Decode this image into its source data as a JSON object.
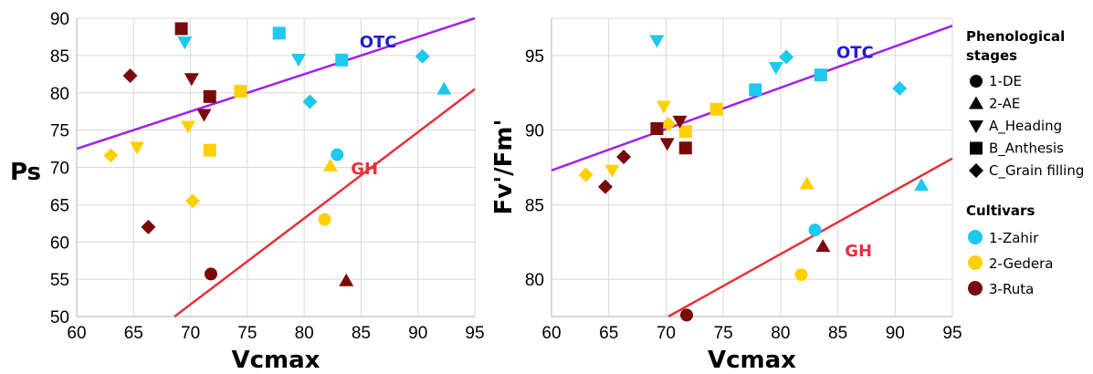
{
  "colors": {
    "zahir": "#1EC8EE",
    "gedera": "#FFD000",
    "ruta": "#7A0A0A",
    "otc": "#A020F0",
    "gh": "#E8303A",
    "otc_label": "#1E1ECC",
    "gh_label": "#E8303A"
  },
  "legend": {
    "stages_title_1": "Phenological",
    "stages_title_2": "stages",
    "stages": [
      {
        "label": "1-DE",
        "marker": "circle"
      },
      {
        "label": "2-AE",
        "marker": "triangle-up"
      },
      {
        "label": "A_Heading",
        "marker": "triangle-down"
      },
      {
        "label": "B_Anthesis",
        "marker": "square"
      },
      {
        "label": "C_Grain filling",
        "marker": "diamond"
      }
    ],
    "cultivars_title": "Cultivars",
    "cultivars": [
      {
        "label": "1-Zahir",
        "key": "zahir"
      },
      {
        "label": "2-Gedera",
        "key": "gedera"
      },
      {
        "label": "3-Ruta",
        "key": "ruta"
      }
    ]
  },
  "chart_data": [
    {
      "type": "scatter",
      "xlabel": "Vcmax",
      "ylabel": "Ps",
      "xlim": [
        60,
        95
      ],
      "ylim": [
        50,
        90
      ],
      "xticks": [
        "60",
        "65",
        "70",
        "75",
        "80",
        "85",
        "90",
        "95"
      ],
      "yticks": [
        "50",
        "55",
        "60",
        "65",
        "70",
        "75",
        "80",
        "85",
        "90"
      ],
      "grid": true,
      "fits": [
        {
          "label": "OTC",
          "color_key": "otc",
          "x0": 60,
          "y0": 72.5,
          "x1": 95,
          "y1": 90.0,
          "label_x": 86.5,
          "label_y": 86.8
        },
        {
          "label": "GH",
          "color_key": "gh",
          "x0": 68.6,
          "y0": 50,
          "x1": 95,
          "y1": 80.5,
          "label_x": 85.3,
          "label_y": 69.8
        }
      ],
      "points": [
        {
          "x": 69.2,
          "y": 88.6,
          "cultivar": "ruta",
          "marker": "square"
        },
        {
          "x": 69.5,
          "y": 86.8,
          "cultivar": "zahir",
          "marker": "triangle-down"
        },
        {
          "x": 77.8,
          "y": 88.0,
          "cultivar": "zahir",
          "marker": "square"
        },
        {
          "x": 79.5,
          "y": 84.5,
          "cultivar": "zahir",
          "marker": "triangle-down"
        },
        {
          "x": 83.3,
          "y": 84.4,
          "cultivar": "zahir",
          "marker": "square"
        },
        {
          "x": 90.4,
          "y": 84.9,
          "cultivar": "zahir",
          "marker": "diamond"
        },
        {
          "x": 92.3,
          "y": 80.5,
          "cultivar": "zahir",
          "marker": "triangle-up"
        },
        {
          "x": 80.5,
          "y": 78.8,
          "cultivar": "zahir",
          "marker": "diamond"
        },
        {
          "x": 64.7,
          "y": 82.3,
          "cultivar": "ruta",
          "marker": "diamond"
        },
        {
          "x": 70.1,
          "y": 81.9,
          "cultivar": "ruta",
          "marker": "triangle-down"
        },
        {
          "x": 74.4,
          "y": 80.2,
          "cultivar": "gedera",
          "marker": "square"
        },
        {
          "x": 71.7,
          "y": 79.5,
          "cultivar": "ruta",
          "marker": "square"
        },
        {
          "x": 71.2,
          "y": 77.1,
          "cultivar": "ruta",
          "marker": "triangle-down"
        },
        {
          "x": 69.8,
          "y": 75.5,
          "cultivar": "gedera",
          "marker": "triangle-down"
        },
        {
          "x": 71.7,
          "y": 72.3,
          "cultivar": "gedera",
          "marker": "square"
        },
        {
          "x": 65.3,
          "y": 72.7,
          "cultivar": "gedera",
          "marker": "triangle-down"
        },
        {
          "x": 63.0,
          "y": 71.6,
          "cultivar": "gedera",
          "marker": "diamond"
        },
        {
          "x": 82.9,
          "y": 71.7,
          "cultivar": "zahir",
          "marker": "circle"
        },
        {
          "x": 82.3,
          "y": 70.2,
          "cultivar": "gedera",
          "marker": "triangle-up"
        },
        {
          "x": 70.2,
          "y": 65.5,
          "cultivar": "gedera",
          "marker": "diamond"
        },
        {
          "x": 81.8,
          "y": 63.0,
          "cultivar": "gedera",
          "marker": "circle"
        },
        {
          "x": 66.3,
          "y": 62.0,
          "cultivar": "ruta",
          "marker": "diamond"
        },
        {
          "x": 71.8,
          "y": 55.7,
          "cultivar": "ruta",
          "marker": "circle"
        },
        {
          "x": 83.7,
          "y": 54.8,
          "cultivar": "ruta",
          "marker": "triangle-up"
        }
      ]
    },
    {
      "type": "scatter",
      "xlabel": "Vcmax",
      "ylabel": "Fv'/Fm'",
      "xlim": [
        60,
        95
      ],
      "ylim": [
        77.5,
        97.5
      ],
      "xticks": [
        "60",
        "65",
        "70",
        "75",
        "80",
        "85",
        "90",
        "95"
      ],
      "yticks": [
        "80",
        "85",
        "90",
        "95"
      ],
      "ytick_values": [
        80,
        85,
        90,
        95
      ],
      "grid": true,
      "fits": [
        {
          "label": "OTC",
          "color_key": "otc",
          "x0": 60,
          "y0": 87.3,
          "x1": 95,
          "y1": 97.0,
          "label_x": 86.5,
          "label_y": 95.2
        },
        {
          "label": "GH",
          "color_key": "gh",
          "x0": 70.2,
          "y0": 77.5,
          "x1": 95,
          "y1": 88.1,
          "label_x": 86.8,
          "label_y": 81.9
        }
      ],
      "points": [
        {
          "x": 69.2,
          "y": 96.0,
          "cultivar": "zahir",
          "marker": "triangle-down"
        },
        {
          "x": 80.5,
          "y": 94.9,
          "cultivar": "zahir",
          "marker": "diamond"
        },
        {
          "x": 79.6,
          "y": 94.2,
          "cultivar": "zahir",
          "marker": "triangle-down"
        },
        {
          "x": 83.5,
          "y": 93.7,
          "cultivar": "zahir",
          "marker": "square"
        },
        {
          "x": 90.4,
          "y": 92.8,
          "cultivar": "zahir",
          "marker": "diamond"
        },
        {
          "x": 77.8,
          "y": 92.7,
          "cultivar": "zahir",
          "marker": "square"
        },
        {
          "x": 92.3,
          "y": 86.3,
          "cultivar": "zahir",
          "marker": "triangle-up"
        },
        {
          "x": 83.0,
          "y": 83.3,
          "cultivar": "zahir",
          "marker": "circle"
        },
        {
          "x": 69.8,
          "y": 91.6,
          "cultivar": "gedera",
          "marker": "triangle-down"
        },
        {
          "x": 74.4,
          "y": 91.4,
          "cultivar": "gedera",
          "marker": "square"
        },
        {
          "x": 70.2,
          "y": 90.4,
          "cultivar": "gedera",
          "marker": "diamond"
        },
        {
          "x": 71.7,
          "y": 89.9,
          "cultivar": "gedera",
          "marker": "square"
        },
        {
          "x": 65.3,
          "y": 87.3,
          "cultivar": "gedera",
          "marker": "triangle-down"
        },
        {
          "x": 63.0,
          "y": 87.0,
          "cultivar": "gedera",
          "marker": "diamond"
        },
        {
          "x": 82.3,
          "y": 86.4,
          "cultivar": "gedera",
          "marker": "triangle-up"
        },
        {
          "x": 81.8,
          "y": 80.3,
          "cultivar": "gedera",
          "marker": "circle"
        },
        {
          "x": 71.2,
          "y": 90.6,
          "cultivar": "ruta",
          "marker": "triangle-down"
        },
        {
          "x": 69.2,
          "y": 90.1,
          "cultivar": "ruta",
          "marker": "square"
        },
        {
          "x": 70.1,
          "y": 89.1,
          "cultivar": "ruta",
          "marker": "triangle-down"
        },
        {
          "x": 71.7,
          "y": 88.8,
          "cultivar": "ruta",
          "marker": "square"
        },
        {
          "x": 66.3,
          "y": 88.2,
          "cultivar": "ruta",
          "marker": "diamond"
        },
        {
          "x": 64.7,
          "y": 86.2,
          "cultivar": "ruta",
          "marker": "diamond"
        },
        {
          "x": 83.7,
          "y": 82.2,
          "cultivar": "ruta",
          "marker": "triangle-up"
        },
        {
          "x": 71.8,
          "y": 77.6,
          "cultivar": "ruta",
          "marker": "circle"
        }
      ]
    }
  ]
}
